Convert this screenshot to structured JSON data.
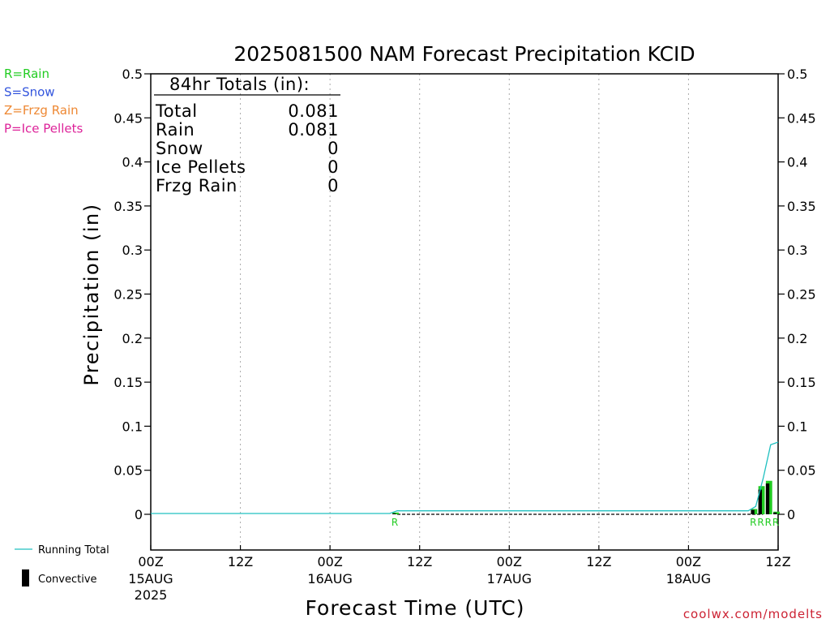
{
  "chart_data": {
    "type": "bar",
    "title": "2025081500 NAM Forecast Precipitation KCID",
    "xlabel": "Forecast Time (UTC)",
    "ylabel": "Precipitation (in)",
    "ylim": [
      -0.04,
      0.5
    ],
    "xlim": [
      0,
      84
    ],
    "y_ticks": [
      "0",
      "0.05",
      "0.1",
      "0.15",
      "0.2",
      "0.25",
      "0.3",
      "0.35",
      "0.4",
      "0.45",
      "0.5"
    ],
    "x_ticks": [
      {
        "hour": 0,
        "line1": "00Z",
        "line2": "15AUG",
        "line3": "2025"
      },
      {
        "hour": 12,
        "line1": "12Z",
        "line2": "",
        "line3": ""
      },
      {
        "hour": 24,
        "line1": "00Z",
        "line2": "16AUG",
        "line3": ""
      },
      {
        "hour": 36,
        "line1": "12Z",
        "line2": "",
        "line3": ""
      },
      {
        "hour": 48,
        "line1": "00Z",
        "line2": "17AUG",
        "line3": ""
      },
      {
        "hour": 60,
        "line1": "12Z",
        "line2": "",
        "line3": ""
      },
      {
        "hour": 72,
        "line1": "00Z",
        "line2": "18AUG",
        "line3": ""
      },
      {
        "hour": 84,
        "line1": "12Z",
        "line2": "",
        "line3": ""
      }
    ],
    "grid": "vertical dotted at 12-hour intervals",
    "precip_bars": [
      {
        "hour": 33,
        "total": 0.002,
        "convective": 0.001,
        "ptype": "R"
      },
      {
        "hour": 81,
        "total": 0.006,
        "convective": 0.005,
        "ptype": "R"
      },
      {
        "hour": 82,
        "total": 0.032,
        "convective": 0.028,
        "ptype": "R"
      },
      {
        "hour": 83,
        "total": 0.038,
        "convective": 0.035,
        "ptype": "R"
      },
      {
        "hour": 84,
        "total": 0.003,
        "convective": 0.002,
        "ptype": "R"
      }
    ],
    "running_total": {
      "name": "Running Total",
      "color": "#20c0c0",
      "x": [
        0,
        32,
        33,
        80,
        81,
        82,
        83,
        84
      ],
      "y": [
        0,
        0,
        0.003,
        0.003,
        0.008,
        0.04,
        0.078,
        0.081
      ]
    },
    "totals_box": {
      "heading": "84hr Totals (in):",
      "rows": [
        {
          "label": "Total",
          "value": "0.081"
        },
        {
          "label": "Rain",
          "value": "0.081"
        },
        {
          "label": "Snow",
          "value": "0"
        },
        {
          "label": "Ice Pellets",
          "value": "0"
        },
        {
          "label": "Frzg Rain",
          "value": "0"
        }
      ]
    },
    "ptype_legend": [
      {
        "text": "R=Rain",
        "color": "#22cc22"
      },
      {
        "text": "S=Snow",
        "color": "#3355dd"
      },
      {
        "text": "Z=Frzg Rain",
        "color": "#ee8833"
      },
      {
        "text": "P=Ice Pellets",
        "color": "#dd2299"
      }
    ],
    "bottom_legend": [
      {
        "text": "Running Total",
        "icon": "cyan-line"
      },
      {
        "text": "Convective",
        "icon": "black-bar"
      }
    ],
    "colors": {
      "rain": "#22cc22",
      "convective": "#000000",
      "running_total": "#20c0c0",
      "credit": "#cc2233"
    }
  },
  "credit": "coolwx.com/modelts"
}
